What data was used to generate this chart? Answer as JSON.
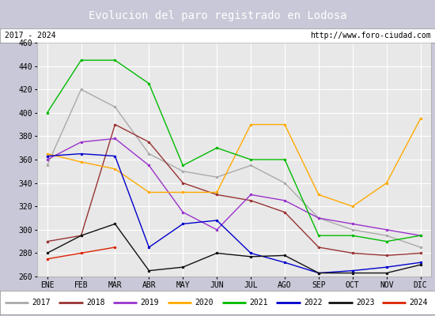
{
  "title": "Evolucion del paro registrado en Lodosa",
  "title_bgcolor": "#5b8dd9",
  "title_color": "white",
  "subtitle_left": "2017 - 2024",
  "subtitle_right": "http://www.foro-ciudad.com",
  "months": [
    "ENE",
    "FEB",
    "MAR",
    "ABR",
    "MAY",
    "JUN",
    "JUL",
    "AGO",
    "SEP",
    "OCT",
    "NOV",
    "DIC"
  ],
  "ylim": [
    260,
    460
  ],
  "yticks": [
    260,
    280,
    300,
    320,
    340,
    360,
    380,
    400,
    420,
    440,
    460
  ],
  "series": {
    "2017": {
      "color": "#aaaaaa",
      "data": [
        355,
        420,
        405,
        365,
        350,
        345,
        355,
        340,
        310,
        300,
        295,
        285
      ]
    },
    "2018": {
      "color": "#993333",
      "data": [
        290,
        295,
        390,
        375,
        340,
        330,
        325,
        315,
        285,
        280,
        278,
        280
      ]
    },
    "2019": {
      "color": "#9933cc",
      "data": [
        360,
        375,
        378,
        355,
        315,
        300,
        330,
        325,
        310,
        305,
        300,
        295
      ]
    },
    "2020": {
      "color": "#ffaa00",
      "data": [
        365,
        358,
        352,
        332,
        332,
        332,
        390,
        390,
        330,
        320,
        340,
        395
      ]
    },
    "2021": {
      "color": "#00bb00",
      "data": [
        400,
        445,
        445,
        425,
        355,
        370,
        360,
        360,
        295,
        295,
        290,
        295
      ]
    },
    "2022": {
      "color": "#0000cc",
      "data": [
        363,
        365,
        363,
        285,
        305,
        308,
        280,
        272,
        263,
        265,
        268,
        272
      ]
    },
    "2023": {
      "color": "#111111",
      "data": [
        280,
        295,
        305,
        265,
        268,
        280,
        277,
        278,
        263,
        263,
        263,
        270
      ]
    },
    "2024": {
      "color": "#dd2200",
      "data": [
        275,
        280,
        285,
        null,
        null,
        null,
        null,
        null,
        null,
        null,
        null,
        null
      ]
    }
  },
  "outer_bgcolor": "#c8c8d8",
  "plot_bgcolor": "#e8e8e8",
  "grid_color": "white",
  "title_fontsize": 10,
  "tick_fontsize": 7,
  "legend_fontsize": 7
}
